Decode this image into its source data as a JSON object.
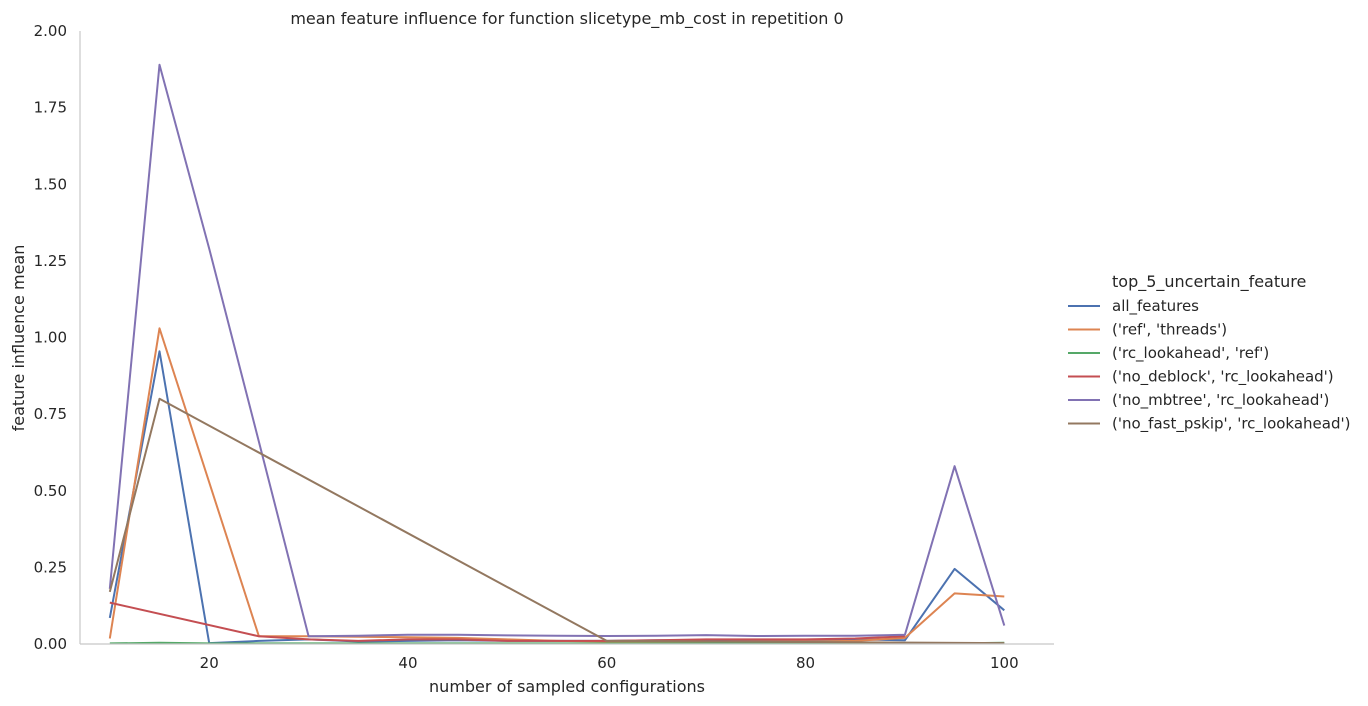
{
  "chart_data": {
    "type": "line",
    "title": "mean feature influence for function slicetype_mb_cost in repetition 0",
    "xlabel": "number of sampled configurations",
    "ylabel": "feature influence mean",
    "xlim": [
      7,
      105
    ],
    "ylim": [
      0,
      2.0
    ],
    "xticks": [
      20,
      40,
      60,
      80,
      100
    ],
    "yticks": [
      0.0,
      0.25,
      0.5,
      0.75,
      1.0,
      1.25,
      1.5,
      1.75,
      2.0
    ],
    "ytick_labels": [
      "0.00",
      "0.25",
      "0.50",
      "0.75",
      "1.00",
      "1.25",
      "1.50",
      "1.75",
      "2.00"
    ],
    "grid": false,
    "legend_placement": "right, outside",
    "legend_title": "top_5_uncertain_feature",
    "series": [
      {
        "name": "all_features",
        "color": "#4c72b0",
        "x": [
          10,
          15,
          20,
          25,
          30,
          35,
          40,
          45,
          50,
          55,
          60,
          65,
          70,
          75,
          80,
          85,
          90,
          95,
          100
        ],
        "y": [
          0.085,
          0.955,
          0.003,
          0.01,
          0.015,
          0.008,
          0.01,
          0.012,
          0.01,
          0.01,
          0.01,
          0.012,
          0.012,
          0.01,
          0.012,
          0.015,
          0.012,
          0.245,
          0.11
        ]
      },
      {
        "name": "('ref', 'threads')",
        "color": "#dd8452",
        "x": [
          10,
          15,
          25,
          30,
          40,
          45,
          50,
          55,
          60,
          65,
          70,
          75,
          80,
          85,
          90,
          95,
          100
        ],
        "y": [
          0.018,
          1.03,
          0.025,
          0.025,
          0.022,
          0.02,
          0.015,
          0.01,
          0.008,
          0.008,
          0.008,
          0.008,
          0.008,
          0.01,
          0.02,
          0.165,
          0.155
        ]
      },
      {
        "name": "('rc_lookahead', 'ref')",
        "color": "#55a868",
        "x": [
          10,
          15,
          20,
          30,
          40,
          50,
          60,
          70,
          80,
          90,
          95,
          100
        ],
        "y": [
          0.002,
          0.004,
          0.002,
          0.002,
          0.002,
          0.002,
          0.002,
          0.002,
          0.002,
          0.002,
          0.002,
          0.004
        ]
      },
      {
        "name": "('no_deblock', 'rc_lookahead')",
        "color": "#c44e52",
        "x": [
          10,
          25,
          30,
          35,
          40,
          45,
          50,
          55,
          60,
          65,
          70,
          75,
          80,
          85,
          90
        ],
        "y": [
          0.135,
          0.025,
          0.015,
          0.01,
          0.015,
          0.015,
          0.01,
          0.01,
          0.01,
          0.012,
          0.015,
          0.015,
          0.015,
          0.018,
          0.025
        ]
      },
      {
        "name": "('no_mbtree', 'rc_lookahead')",
        "color": "#8172b3",
        "x": [
          10,
          15,
          20,
          25,
          30,
          35,
          40,
          45,
          50,
          55,
          60,
          65,
          70,
          75,
          80,
          85,
          90,
          95,
          100
        ],
        "y": [
          0.18,
          1.89,
          1.29,
          0.66,
          0.025,
          0.027,
          0.03,
          0.03,
          0.028,
          0.027,
          0.026,
          0.027,
          0.029,
          0.026,
          0.027,
          0.027,
          0.03,
          0.58,
          0.06
        ]
      },
      {
        "name": "('no_fast_pskip', 'rc_lookahead')",
        "color": "#937860",
        "x": [
          10,
          15,
          60,
          100
        ],
        "y": [
          0.17,
          0.8,
          0.01,
          0.003
        ]
      }
    ]
  }
}
